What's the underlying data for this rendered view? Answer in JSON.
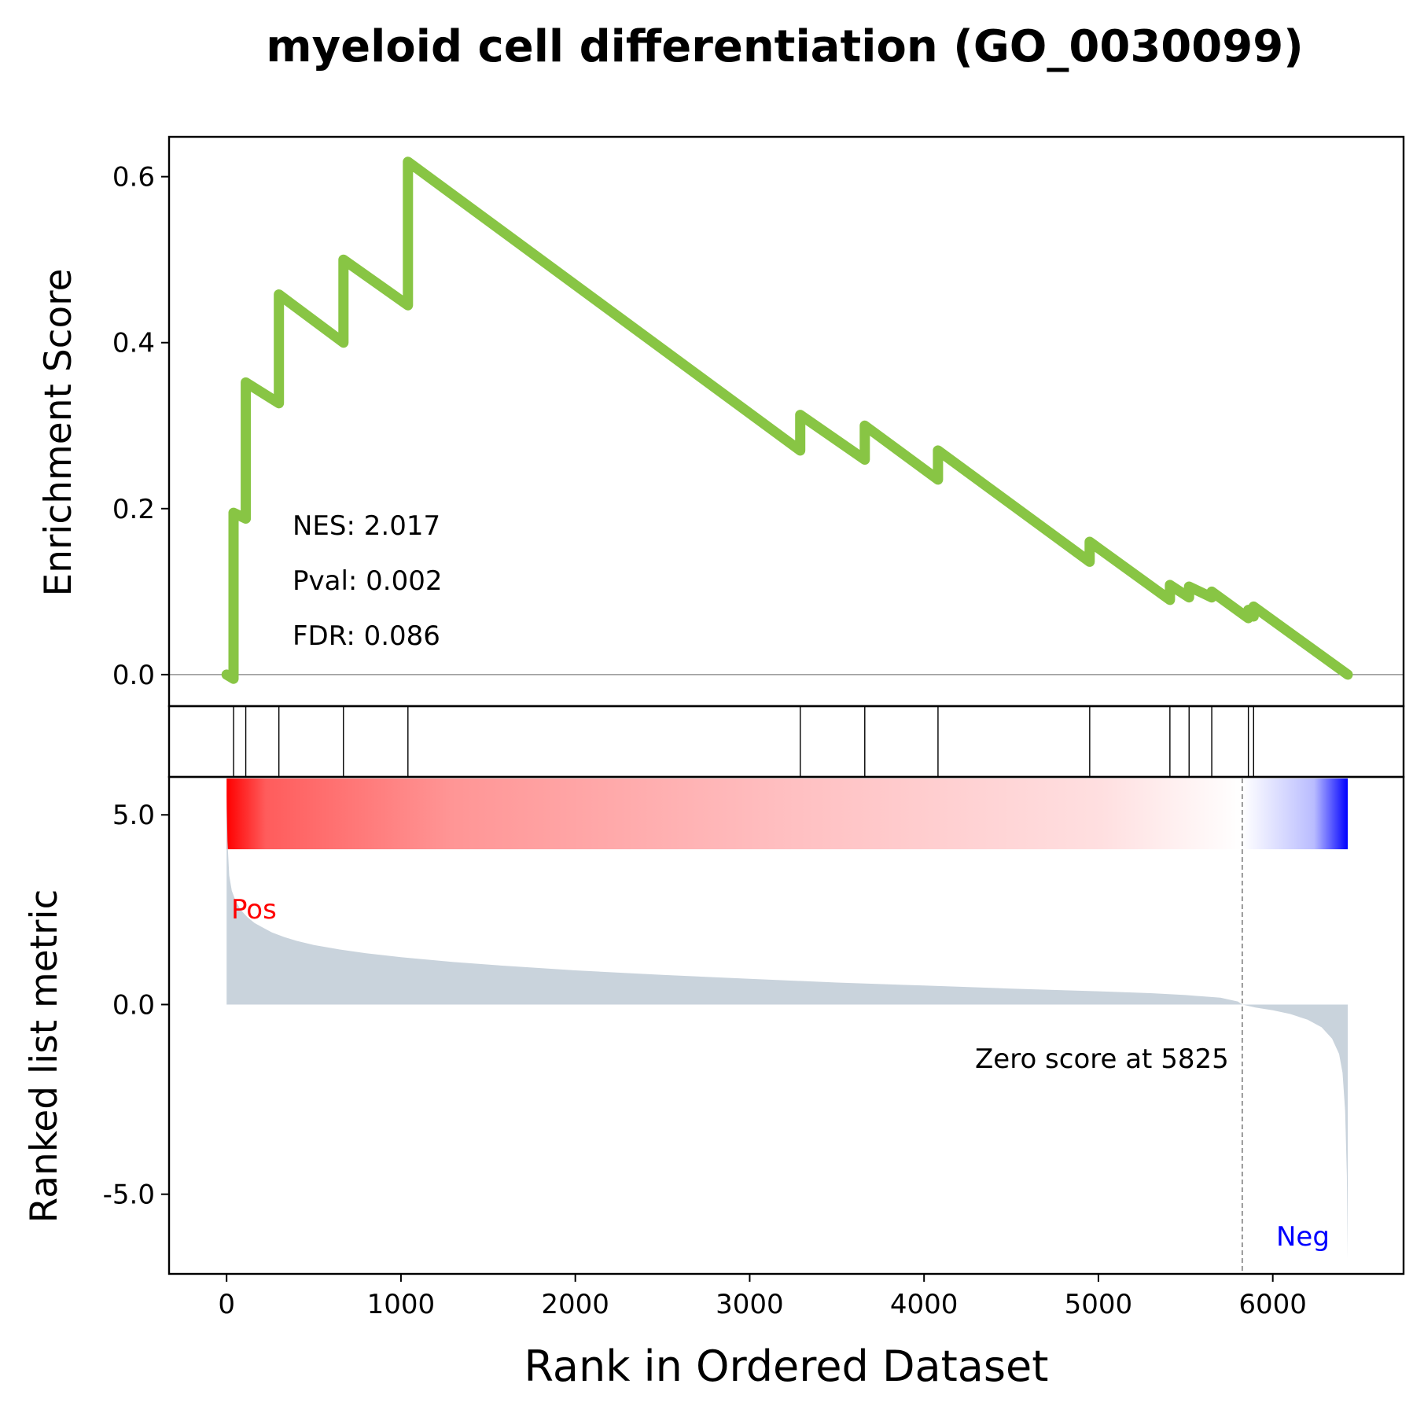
{
  "chart_data": {
    "type": "line",
    "title": "myeloid cell differentiation (GO_0030099)",
    "xlabel": "Rank in Ordered Dataset",
    "xlim": [
      -330,
      6750
    ],
    "xticks": [
      0,
      1000,
      2000,
      3000,
      4000,
      5000,
      6000
    ],
    "xtick_labels": [
      "0",
      "1000",
      "2000",
      "3000",
      "4000",
      "5000",
      "6000"
    ],
    "n_genes": 6430,
    "es_panel": {
      "ylabel": "Enrichment Score",
      "ylim": [
        -0.038,
        0.648
      ],
      "yticks": [
        0.0,
        0.2,
        0.4,
        0.6
      ],
      "ytick_labels": [
        "0.0",
        "0.2",
        "0.4",
        "0.6"
      ],
      "line_color": "#88c544",
      "series": [
        {
          "x": [
            0,
            40,
            40,
            110,
            110,
            300,
            300,
            670,
            670,
            1040,
            1040,
            3290,
            3290,
            3660,
            3660,
            4080,
            4080,
            4950,
            4950,
            5410,
            5410,
            5520,
            5520,
            5650,
            5650,
            5860,
            5860,
            5890,
            5890,
            6430
          ],
          "y": [
            0.0,
            -0.005,
            0.195,
            0.188,
            0.352,
            0.327,
            0.458,
            0.4,
            0.5,
            0.445,
            0.618,
            0.27,
            0.313,
            0.259,
            0.3,
            0.235,
            0.27,
            0.136,
            0.16,
            0.09,
            0.108,
            0.093,
            0.106,
            0.093,
            0.1,
            0.068,
            0.078,
            0.07,
            0.082,
            0.0
          ]
        }
      ],
      "zero_line": 0.0,
      "annotations": [
        "NES: 2.017",
        "Pval: 0.002",
        "FDR: 0.086"
      ]
    },
    "hits": [
      40,
      110,
      300,
      670,
      1040,
      3290,
      3660,
      4080,
      4950,
      5410,
      5520,
      5650,
      5860,
      5890
    ],
    "heatmap": {
      "colors": [
        "#ff0000",
        "#ffffff",
        "#0000ff"
      ]
    },
    "metric_panel": {
      "ylabel": "Ranked list metric",
      "ylim": [
        -7.1,
        6.0
      ],
      "yticks": [
        5.0,
        0.0,
        -5.0
      ],
      "ytick_labels": [
        "5.0",
        "0.0",
        "-5.0"
      ],
      "fill_color": "#c9d3dc",
      "series": [
        {
          "x": [
            0,
            5,
            15,
            30,
            50,
            80,
            120,
            160,
            200,
            260,
            330,
            400,
            500,
            650,
            800,
            1000,
            1300,
            1600,
            2000,
            2500,
            3000,
            3500,
            4000,
            4500,
            5000,
            5300,
            5500,
            5700,
            5800,
            5825,
            5900,
            6000,
            6100,
            6200,
            6280,
            6340,
            6380,
            6400,
            6415,
            6425,
            6430
          ],
          "y": [
            5.5,
            4.3,
            3.4,
            3.0,
            2.75,
            2.5,
            2.3,
            2.15,
            2.05,
            1.9,
            1.78,
            1.68,
            1.57,
            1.45,
            1.35,
            1.25,
            1.12,
            1.02,
            0.9,
            0.78,
            0.68,
            0.58,
            0.5,
            0.42,
            0.35,
            0.3,
            0.25,
            0.18,
            0.08,
            0.0,
            -0.08,
            -0.15,
            -0.25,
            -0.4,
            -0.6,
            -0.9,
            -1.3,
            -1.8,
            -2.8,
            -4.5,
            -6.7
          ]
        }
      ],
      "zero_cross": 5825,
      "zero_label": "Zero score at 5825",
      "pos_label": "Pos",
      "neg_label": "Neg",
      "pos_color": "#ff0000",
      "neg_color": "#0000ff"
    }
  }
}
